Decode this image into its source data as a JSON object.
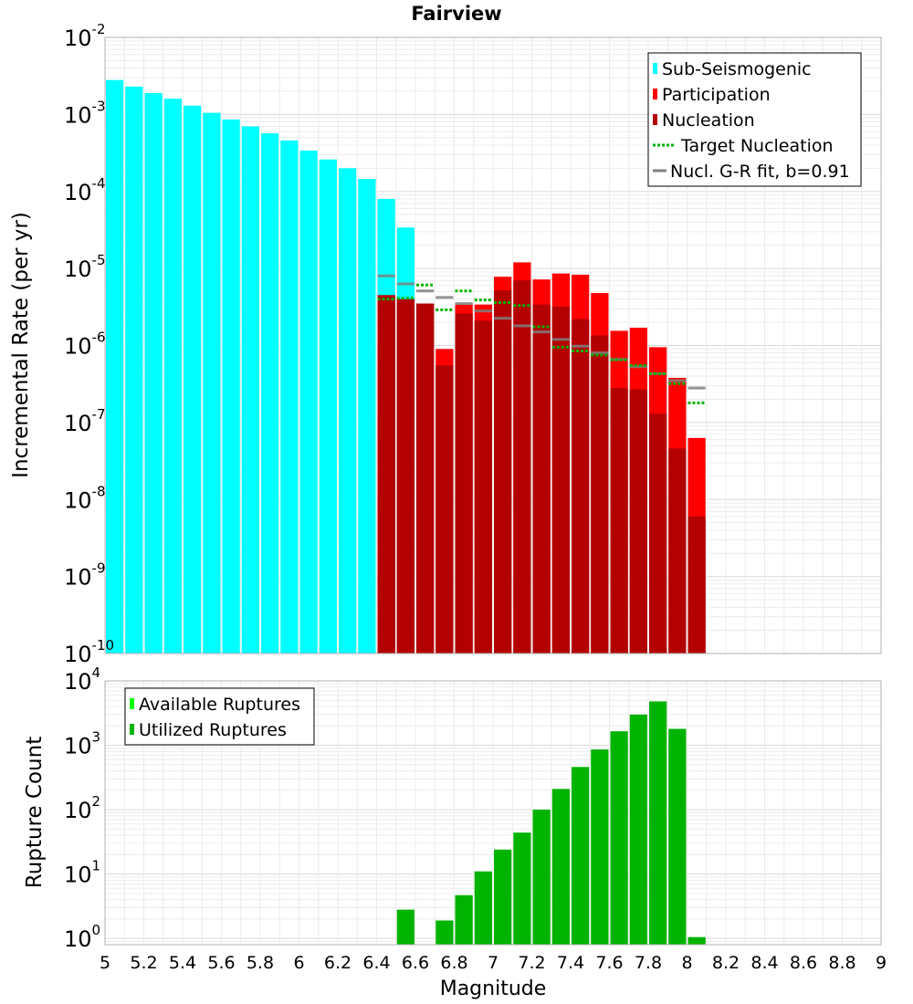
{
  "chart_data": [
    {
      "type": "bar",
      "title": "Fairview",
      "ylabel": "Incremental Rate (per yr)",
      "xlabel": "",
      "xlim": [
        5,
        9
      ],
      "ylim": [
        1e-10,
        0.01
      ],
      "yscale": "log",
      "grid": true,
      "legend_position": "top-right",
      "y_ticks": [
        {
          "base": "10",
          "exp": "-10",
          "value": 1e-10
        },
        {
          "base": "10",
          "exp": "-9",
          "value": 1e-09
        },
        {
          "base": "10",
          "exp": "-8",
          "value": 1e-08
        },
        {
          "base": "10",
          "exp": "-7",
          "value": 1e-07
        },
        {
          "base": "10",
          "exp": "-6",
          "value": 1e-06
        },
        {
          "base": "10",
          "exp": "-5",
          "value": 1e-05
        },
        {
          "base": "10",
          "exp": "-4",
          "value": 0.0001
        },
        {
          "base": "10",
          "exp": "-3",
          "value": 0.001
        },
        {
          "base": "10",
          "exp": "-2",
          "value": 0.01
        }
      ],
      "legend": [
        {
          "label": "Sub-Seismogenic",
          "color": "#00ffff",
          "style": "bar"
        },
        {
          "label": "Participation",
          "color": "#ff0000",
          "style": "bar"
        },
        {
          "label": "Nucleation",
          "color": "#b30000",
          "style": "bar"
        },
        {
          "label": "Target Nucleation",
          "color": "#00b300",
          "style": "dotted"
        },
        {
          "label": "Nucl. G-R fit, b=0.91",
          "color": "#808080",
          "style": "line"
        }
      ],
      "series": [
        {
          "key": "sub",
          "color": "#00ffff",
          "x": [
            5.05,
            5.15,
            5.25,
            5.35,
            5.45,
            5.55,
            5.65,
            5.75,
            5.85,
            5.95,
            6.05,
            6.15,
            6.25,
            6.35,
            6.45,
            6.55
          ],
          "values": [
            0.0028,
            0.0023,
            0.0019,
            0.0016,
            0.0013,
            0.00105,
            0.00086,
            0.0007,
            0.00057,
            0.00046,
            0.00034,
            0.00026,
            0.0002,
            0.000145,
            8e-05,
            3.4e-05
          ]
        },
        {
          "key": "participation",
          "color": "#ff0000",
          "x": [
            6.45,
            6.55,
            6.65,
            6.75,
            6.85,
            6.95,
            7.05,
            7.15,
            7.25,
            7.35,
            7.45,
            7.55,
            7.65,
            7.75,
            7.85,
            7.95,
            8.05
          ],
          "values": [
            4.5e-06,
            4e-06,
            3.5e-06,
            9e-07,
            3.4e-06,
            3.4e-06,
            7.8e-06,
            1.2e-05,
            7.2e-06,
            8.6e-06,
            8.3e-06,
            4.8e-06,
            1.55e-06,
            1.7e-06,
            9.5e-07,
            3.8e-07,
            6.3e-08
          ]
        },
        {
          "key": "nucleation",
          "color": "#b30000",
          "x": [
            6.45,
            6.55,
            6.65,
            6.75,
            6.85,
            6.95,
            7.05,
            7.15,
            7.25,
            7.35,
            7.45,
            7.55,
            7.65,
            7.75,
            7.85,
            7.95,
            8.05
          ],
          "values": [
            4.5e-06,
            4e-06,
            3.5e-06,
            5.5e-07,
            2.6e-06,
            2.1e-06,
            5.2e-06,
            7e-06,
            3.4e-06,
            3.2e-06,
            2.2e-06,
            1.35e-06,
            2.8e-07,
            2.7e-07,
            1.3e-07,
            4.6e-08,
            6e-09
          ]
        }
      ],
      "target_nucleation": {
        "x": [
          6.45,
          6.55,
          6.65,
          6.75,
          6.85,
          6.95,
          7.05,
          7.15,
          7.25,
          7.35,
          7.45,
          7.55,
          7.65,
          7.75,
          7.85,
          7.95,
          8.05
        ],
        "values": [
          4e-06,
          4.1e-06,
          6.1e-06,
          2.9e-06,
          5.1e-06,
          3.9e-06,
          3.6e-06,
          3.3e-06,
          1.75e-06,
          9.5e-07,
          8.5e-07,
          7.5e-07,
          6.5e-07,
          5.5e-07,
          4.3e-07,
          3.2e-07,
          1.8e-07
        ]
      },
      "gr_fit": {
        "x": [
          6.45,
          6.55,
          6.65,
          6.75,
          6.85,
          6.95,
          7.05,
          7.15,
          7.25,
          7.35,
          7.45,
          7.55,
          7.65,
          7.75,
          7.85,
          7.95,
          8.05
        ],
        "values": [
          8e-06,
          6.3e-06,
          5.1e-06,
          4.2e-06,
          3.5e-06,
          2.8e-06,
          2.25e-06,
          1.8e-06,
          1.5e-06,
          1.2e-06,
          9.8e-07,
          8e-07,
          6.6e-07,
          5.3e-07,
          4.3e-07,
          3.5e-07,
          2.8e-07
        ]
      }
    },
    {
      "type": "bar",
      "title": "",
      "ylabel": "Rupture Count",
      "xlabel": "Magnitude",
      "xlim": [
        5,
        9
      ],
      "ylim": [
        0.8,
        10000.0
      ],
      "yscale": "log",
      "grid": true,
      "legend_position": "top-left",
      "x_ticks": [
        "5",
        "5.2",
        "5.4",
        "5.6",
        "5.8",
        "6",
        "6.2",
        "6.4",
        "6.6",
        "6.8",
        "7",
        "7.2",
        "7.4",
        "7.6",
        "7.8",
        "8",
        "8.2",
        "8.4",
        "8.6",
        "8.8",
        "9"
      ],
      "y_ticks": [
        {
          "base": "10",
          "exp": "0",
          "value": 1
        },
        {
          "base": "10",
          "exp": "1",
          "value": 10
        },
        {
          "base": "10",
          "exp": "2",
          "value": 100
        },
        {
          "base": "10",
          "exp": "3",
          "value": 1000
        },
        {
          "base": "10",
          "exp": "4",
          "value": 10000
        }
      ],
      "legend": [
        {
          "label": "Available Ruptures",
          "color": "#00ff00",
          "style": "bar"
        },
        {
          "label": "Utilized Ruptures",
          "color": "#00b300",
          "style": "bar"
        }
      ],
      "series": [
        {
          "key": "utilized",
          "color": "#00b300",
          "x": [
            6.55,
            6.75,
            6.85,
            6.95,
            7.05,
            7.15,
            7.25,
            7.35,
            7.45,
            7.55,
            7.65,
            7.75,
            7.85,
            7.95,
            8.05
          ],
          "values": [
            2.8,
            1.9,
            4.7,
            11,
            24,
            44,
            100,
            210,
            460,
            860,
            1650,
            3000,
            4800,
            1800,
            1.05
          ]
        }
      ]
    }
  ]
}
